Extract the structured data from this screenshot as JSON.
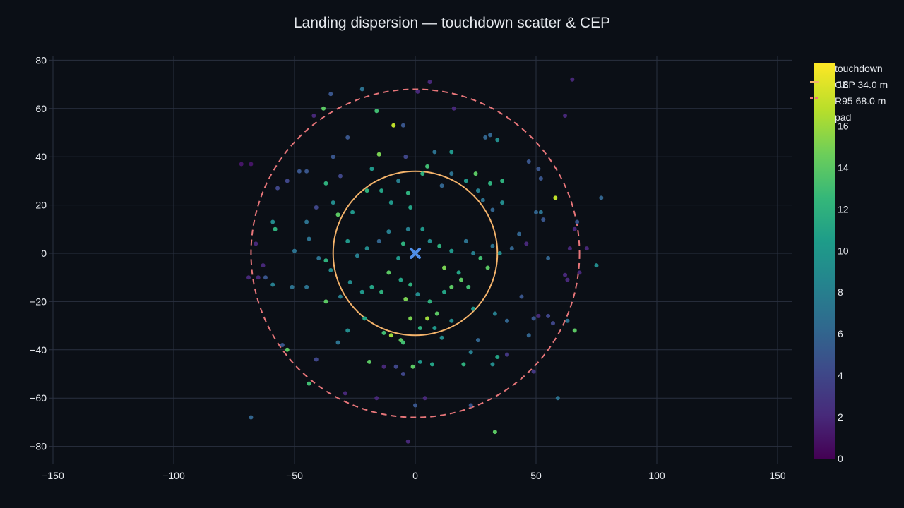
{
  "colors": {
    "background": "#0b0f16",
    "grid": "#2a3140",
    "text": "#e6e9ee",
    "cep_ring": "#f4b36b",
    "r95_ring": "#e8767a",
    "pad_marker": "#4f8ee8",
    "colormap": "viridis"
  },
  "chart_data": {
    "type": "scatter",
    "title": "Landing dispersion — touchdown scatter & CEP",
    "xlabel": "",
    "ylabel": "",
    "xlim": [
      -152,
      156
    ],
    "ylim": [
      -88,
      83
    ],
    "x_ticks": [
      -150,
      -100,
      -50,
      0,
      50,
      100,
      150
    ],
    "x_tick_labels": [
      "−150",
      "−100",
      "−50",
      "0",
      "50",
      "100",
      "150"
    ],
    "y_ticks": [
      -80,
      -60,
      -40,
      -20,
      0,
      20,
      40,
      60,
      80
    ],
    "y_tick_labels": [
      "−80",
      "−60",
      "−40",
      "−20",
      "0",
      "20",
      "40",
      "60",
      "80"
    ],
    "grid": true,
    "legend_position": "top-right",
    "legend": [
      {
        "label": "touchdown",
        "type": "points"
      },
      {
        "label": "CEP 34.0 m",
        "type": "solid-circle"
      },
      {
        "label": "R95 68.0 m",
        "type": "dashed-circle"
      },
      {
        "label": "pad",
        "type": "x-marker"
      }
    ],
    "colorbar": {
      "min": 0,
      "max": 19,
      "ticks": [
        0,
        2,
        4,
        6,
        8,
        10,
        12,
        14,
        16,
        18
      ],
      "tick_labels": [
        "0",
        "2",
        "4",
        "6",
        "8",
        "10",
        "12",
        "14",
        "16",
        "18"
      ]
    },
    "circles": [
      {
        "name": "CEP 34.0 m",
        "center": [
          0,
          0
        ],
        "radius": 34.0,
        "style": "solid"
      },
      {
        "name": "R95 68.0 m",
        "center": [
          0,
          0
        ],
        "radius": 68.0,
        "style": "dashed"
      }
    ],
    "pad": {
      "name": "pad",
      "x": 0,
      "y": 0
    },
    "series": [
      {
        "name": "touchdown",
        "points": [
          [
            -72,
            37,
            1
          ],
          [
            -68,
            37,
            1
          ],
          [
            -57,
            27,
            4
          ],
          [
            -53,
            30,
            4
          ],
          [
            -48,
            34,
            5
          ],
          [
            -45,
            34,
            5
          ],
          [
            -34,
            40,
            5
          ],
          [
            -31,
            32,
            4
          ],
          [
            -28,
            48,
            5
          ],
          [
            -35,
            66,
            5
          ],
          [
            -22,
            68,
            7
          ],
          [
            -16,
            59,
            13
          ],
          [
            -38,
            60,
            14
          ],
          [
            -9,
            53,
            17
          ],
          [
            -5,
            53,
            5
          ],
          [
            1,
            67,
            2
          ],
          [
            6,
            71,
            2
          ],
          [
            16,
            60,
            2
          ],
          [
            -42,
            57,
            2
          ],
          [
            -15,
            41,
            15
          ],
          [
            -4,
            40,
            4
          ],
          [
            8,
            42,
            7
          ],
          [
            15,
            42,
            10
          ],
          [
            29,
            48,
            6
          ],
          [
            31,
            49,
            6
          ],
          [
            34,
            47,
            9
          ],
          [
            47,
            38,
            5
          ],
          [
            51,
            35,
            5
          ],
          [
            52,
            31,
            5
          ],
          [
            58,
            23,
            17
          ],
          [
            62,
            57,
            2
          ],
          [
            65,
            72,
            2
          ],
          [
            77,
            23,
            6
          ],
          [
            -59,
            13,
            9
          ],
          [
            -58,
            10,
            12
          ],
          [
            -45,
            13,
            7
          ],
          [
            -41,
            19,
            4
          ],
          [
            -37,
            29,
            12
          ],
          [
            -34,
            21,
            9
          ],
          [
            -32,
            16,
            14
          ],
          [
            -26,
            17,
            10
          ],
          [
            -20,
            26,
            12
          ],
          [
            -18,
            35,
            10
          ],
          [
            -14,
            26,
            11
          ],
          [
            -10,
            21,
            10
          ],
          [
            -7,
            30,
            8
          ],
          [
            -3,
            25,
            12
          ],
          [
            -2,
            19,
            11
          ],
          [
            3,
            33,
            12
          ],
          [
            5,
            36,
            13
          ],
          [
            11,
            28,
            6
          ],
          [
            15,
            33,
            7
          ],
          [
            21,
            30,
            10
          ],
          [
            25,
            33,
            14
          ],
          [
            26,
            26,
            8
          ],
          [
            28,
            22,
            7
          ],
          [
            31,
            29,
            12
          ],
          [
            36,
            30,
            12
          ],
          [
            32,
            18,
            6
          ],
          [
            36,
            21,
            9
          ],
          [
            50,
            17,
            6
          ],
          [
            52,
            17,
            7
          ],
          [
            53,
            14,
            5
          ],
          [
            67,
            13,
            5
          ],
          [
            66,
            10,
            2
          ],
          [
            -50,
            1,
            7
          ],
          [
            -44,
            6,
            7
          ],
          [
            -40,
            -2,
            7
          ],
          [
            -37,
            -3,
            12
          ],
          [
            -35,
            -7,
            9
          ],
          [
            -28,
            5,
            10
          ],
          [
            -24,
            -1,
            8
          ],
          [
            -20,
            2,
            9
          ],
          [
            -15,
            5,
            6
          ],
          [
            -11,
            9,
            8
          ],
          [
            -7,
            -2,
            10
          ],
          [
            -5,
            4,
            12
          ],
          [
            -3,
            10,
            8
          ],
          [
            3,
            10,
            10
          ],
          [
            6,
            5,
            9
          ],
          [
            10,
            3,
            12
          ],
          [
            12,
            -6,
            15
          ],
          [
            15,
            1,
            10
          ],
          [
            18,
            -8,
            11
          ],
          [
            21,
            5,
            7
          ],
          [
            24,
            0,
            8
          ],
          [
            27,
            -2,
            13
          ],
          [
            30,
            -6,
            14
          ],
          [
            32,
            3,
            7
          ],
          [
            35,
            0,
            9
          ],
          [
            40,
            2,
            6
          ],
          [
            43,
            8,
            6
          ],
          [
            46,
            4,
            2
          ],
          [
            55,
            -2,
            6
          ],
          [
            64,
            2,
            2
          ],
          [
            62,
            -9,
            2
          ],
          [
            75,
            -5,
            9
          ],
          [
            -62,
            -10,
            5
          ],
          [
            -59,
            -13,
            8
          ],
          [
            -51,
            -14,
            7
          ],
          [
            -45,
            -14,
            7
          ],
          [
            -37,
            -20,
            14
          ],
          [
            -31,
            -18,
            8
          ],
          [
            -27,
            -12,
            9
          ],
          [
            -22,
            -16,
            10
          ],
          [
            -18,
            -14,
            11
          ],
          [
            -14,
            -16,
            12
          ],
          [
            -11,
            -8,
            14
          ],
          [
            -6,
            -11,
            11
          ],
          [
            -4,
            -19,
            15
          ],
          [
            -2,
            -13,
            12
          ],
          [
            1,
            -17,
            9
          ],
          [
            6,
            -20,
            12
          ],
          [
            9,
            -25,
            14
          ],
          [
            12,
            -16,
            11
          ],
          [
            15,
            -14,
            14
          ],
          [
            19,
            -11,
            14
          ],
          [
            22,
            -14,
            13
          ],
          [
            24,
            -23,
            10
          ],
          [
            33,
            -25,
            8
          ],
          [
            38,
            -28,
            6
          ],
          [
            44,
            -18,
            5
          ],
          [
            49,
            -27,
            5
          ],
          [
            51,
            -26,
            2
          ],
          [
            55,
            -26,
            4
          ],
          [
            57,
            -29,
            4
          ],
          [
            63,
            -28,
            7
          ],
          [
            66,
            -32,
            14
          ],
          [
            -55,
            -38,
            5
          ],
          [
            -53,
            -40,
            14
          ],
          [
            -44,
            -54,
            13
          ],
          [
            -41,
            -44,
            4
          ],
          [
            -32,
            -37,
            7
          ],
          [
            -28,
            -32,
            9
          ],
          [
            -21,
            -27,
            11
          ],
          [
            -19,
            -45,
            14
          ],
          [
            -13,
            -33,
            13
          ],
          [
            -10,
            -34,
            16
          ],
          [
            -6,
            -36,
            14
          ],
          [
            -5,
            -37,
            13
          ],
          [
            -2,
            -27,
            15
          ],
          [
            2,
            -31,
            12
          ],
          [
            5,
            -27,
            16
          ],
          [
            8,
            -31,
            10
          ],
          [
            11,
            -35,
            9
          ],
          [
            15,
            -28,
            9
          ],
          [
            20,
            -46,
            12
          ],
          [
            23,
            -41,
            8
          ],
          [
            26,
            -36,
            6
          ],
          [
            32,
            -46,
            9
          ],
          [
            34,
            -43,
            11
          ],
          [
            38,
            -42,
            3
          ],
          [
            47,
            -34,
            6
          ],
          [
            49,
            -49,
            3
          ],
          [
            -1,
            -47,
            14
          ],
          [
            2,
            -45,
            10
          ],
          [
            7,
            -46,
            11
          ],
          [
            -5,
            -50,
            4
          ],
          [
            -8,
            -47,
            4
          ],
          [
            -13,
            -47,
            2
          ],
          [
            -29,
            -58,
            2
          ],
          [
            -16,
            -60,
            2
          ],
          [
            4,
            -60,
            2
          ],
          [
            0,
            -63,
            5
          ],
          [
            23,
            -63,
            5
          ],
          [
            33,
            -74,
            14
          ],
          [
            -68,
            -68,
            6
          ],
          [
            59,
            -60,
            7
          ],
          [
            -3,
            -78,
            2
          ],
          [
            -65,
            -10,
            2
          ],
          [
            -66,
            4,
            2
          ],
          [
            -63,
            -5,
            2
          ],
          [
            -69,
            -10,
            2
          ],
          [
            63,
            -11,
            2
          ],
          [
            68,
            -8,
            2
          ],
          [
            71,
            2,
            2
          ]
        ]
      }
    ]
  }
}
